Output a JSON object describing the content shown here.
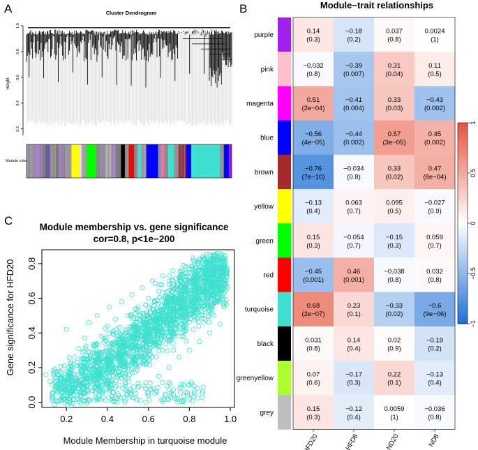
{
  "panel_labels": {
    "a": "A",
    "b": "B",
    "c": "C"
  },
  "colors": {
    "heat_neg": "#1F6FD6",
    "heat_zero": "#FFFFFF",
    "heat_pos": "#E8543E",
    "scatter": "#40E0D0"
  },
  "chart_data": [
    {
      "type": "dendrogram",
      "title": "Cluster Dendrogram",
      "ylabel": "Height",
      "ylim": [
        0.15,
        1.0
      ],
      "yticks": [
        "0.2",
        "0.4",
        "0.6",
        "0.8",
        "1.0"
      ],
      "ytick_values": [
        0.2,
        0.4,
        0.6,
        0.8,
        1.0
      ],
      "module_bar_label": "Module colors",
      "module_bar_colors": [
        "#9e9e9e",
        "#8a8f98",
        "#a97ac0",
        "#7f7f7f",
        "#6a5aa8",
        "#9b9b9b",
        "#808080",
        "#b07cc6",
        "#999999",
        "#ffff00",
        "#dcdcdc",
        "#a0a0a0",
        "#00ff00",
        "#909090",
        "#8c8c8c",
        "#b3b3b3",
        "#a287c1",
        "#7c7c7c",
        "#000000",
        "#9a9a9a",
        "#ff0000",
        "#8f8f8f",
        "#40e0d0",
        "#a4a4a4",
        "#0000ff",
        "#909090",
        "#ff69b4",
        "#8a8a8a",
        "#40e0d0",
        "#9a9a9a",
        "#a52a2a",
        "#0000ff",
        "#40e0d0",
        "#40e0d0",
        "#969696",
        "#0000ff",
        "#a020f0"
      ]
    },
    {
      "type": "heatmap",
      "title": "Module−trait relationships",
      "rows": [
        "purple",
        "pink",
        "magenta",
        "blue",
        "brown",
        "yellow",
        "green",
        "red",
        "turquoise",
        "black",
        "greenyellow",
        "grey"
      ],
      "row_colors": [
        "#A020F0",
        "#FFC0CB",
        "#FF00FF",
        "#0000FF",
        "#A52A2A",
        "#FFFF00",
        "#00FF00",
        "#FF0000",
        "#40E0D0",
        "#000000",
        "#ADFF2F",
        "#BEBEBE"
      ],
      "columns": [
        "HFD20",
        "HFD8",
        "ND20",
        "ND8"
      ],
      "values": [
        [
          0.14,
          -0.18,
          0.037,
          0.0024
        ],
        [
          -0.032,
          -0.39,
          0.31,
          0.11
        ],
        [
          0.51,
          -0.41,
          0.33,
          -0.43
        ],
        [
          -0.56,
          -0.44,
          0.57,
          0.45
        ],
        [
          -0.76,
          -0.034,
          0.33,
          0.47
        ],
        [
          -0.13,
          0.063,
          0.095,
          -0.027
        ],
        [
          0.15,
          -0.054,
          -0.15,
          0.059
        ],
        [
          -0.45,
          0.46,
          -0.038,
          0.032
        ],
        [
          0.68,
          0.23,
          -0.33,
          -0.6
        ],
        [
          0.031,
          0.14,
          0.02,
          -0.19
        ],
        [
          0.07,
          -0.17,
          0.22,
          -0.13
        ],
        [
          0.15,
          -0.12,
          0.0059,
          -0.036
        ]
      ],
      "value_labels": [
        [
          "0.14",
          "−0.18",
          "0.037",
          "0.0024"
        ],
        [
          "−0.032",
          "−0.39",
          "0.31",
          "0.11"
        ],
        [
          "0.51",
          "−0.41",
          "0.33",
          "−0.43"
        ],
        [
          "−0.56",
          "−0.44",
          "0.57",
          "0.45"
        ],
        [
          "−0.76",
          "−0.034",
          "0.33",
          "0.47"
        ],
        [
          "−0.13",
          "0.063",
          "0.095",
          "−0.027"
        ],
        [
          "0.15",
          "−0.054",
          "−0.15",
          "0.059"
        ],
        [
          "−0.45",
          "0.46",
          "−0.038",
          "0.032"
        ],
        [
          "0.68",
          "0.23",
          "−0.33",
          "−0.6"
        ],
        [
          "0.031",
          "0.14",
          "0.02",
          "−0.19"
        ],
        [
          "0.07",
          "−0.17",
          "0.22",
          "−0.13"
        ],
        [
          "0.15",
          "−0.12",
          "0.0059",
          "−0.036"
        ]
      ],
      "pvalues": [
        [
          "(0.3)",
          "(0.2)",
          "(0.8)",
          "(1)"
        ],
        [
          "(0.8)",
          "(0.007)",
          "(0.04)",
          "(0.5)"
        ],
        [
          "(2e−04)",
          "(0.004)",
          "(0.03)",
          "(0.002)"
        ],
        [
          "(4e−05)",
          "(0.002)",
          "(3e−05)",
          "(0.002)"
        ],
        [
          "(7e−10)",
          "(0.8)",
          "(0.02)",
          "(8e−04)"
        ],
        [
          "(0.4)",
          "(0.7)",
          "(0.5)",
          "(0.9)"
        ],
        [
          "(0.3)",
          "(0.7)",
          "(0.3)",
          "(0.7)"
        ],
        [
          "(0.001)",
          "(0.001)",
          "(0.8)",
          "(0.8)"
        ],
        [
          "(2e−07)",
          "(0.1)",
          "(0.02)",
          "(9e−06)"
        ],
        [
          "(0.8)",
          "(0.4)",
          "(0.9)",
          "(0.2)"
        ],
        [
          "(0.6)",
          "(0.3)",
          "(0.1)",
          "(0.4)"
        ],
        [
          "(0.3)",
          "(0.4)",
          "(1)",
          "(0.8)"
        ]
      ],
      "color_range": [
        -1,
        1
      ],
      "colorbar_ticks": [
        "1",
        "0.5",
        "0",
        "−0.5",
        "−1"
      ],
      "colorbar_tick_values": [
        1,
        0.5,
        0,
        -0.5,
        -1
      ]
    },
    {
      "type": "scatter",
      "title": "Module membership vs. gene significance",
      "subtitle": "cor=0.8, p<1e−200",
      "xlabel": "Module Membership in turquoise module",
      "ylabel": "Gene significance for  HFD20",
      "xlim": [
        0.08,
        1.02
      ],
      "ylim": [
        -0.03,
        0.88
      ],
      "xticks": [
        "0.2",
        "0.4",
        "0.6",
        "0.8",
        "1.0"
      ],
      "xtick_values": [
        0.2,
        0.4,
        0.6,
        0.8,
        1.0
      ],
      "yticks": [
        "0.0",
        "0.2",
        "0.4",
        "0.6",
        "0.8"
      ],
      "ytick_values": [
        0.0,
        0.2,
        0.4,
        0.6,
        0.8
      ],
      "points": [
        [
          0.1,
          0.16
        ],
        [
          0.12,
          0.12
        ],
        [
          0.13,
          0.05
        ],
        [
          0.15,
          0.09
        ],
        [
          0.17,
          0.14
        ],
        [
          0.18,
          0.03
        ],
        [
          0.19,
          0.21
        ],
        [
          0.2,
          0.11
        ],
        [
          0.2,
          0.42
        ],
        [
          0.21,
          0.02
        ],
        [
          0.22,
          0.17
        ],
        [
          0.23,
          0.08
        ],
        [
          0.24,
          0.26
        ],
        [
          0.25,
          0.13
        ],
        [
          0.26,
          0.31
        ],
        [
          0.27,
          0.05
        ],
        [
          0.28,
          0.2
        ],
        [
          0.29,
          0.37
        ],
        [
          0.3,
          0.1
        ],
        [
          0.3,
          0.27
        ],
        [
          0.31,
          0.46
        ],
        [
          0.32,
          0.15
        ],
        [
          0.33,
          0.33
        ],
        [
          0.34,
          0.06
        ],
        [
          0.35,
          0.24
        ],
        [
          0.35,
          0.5
        ],
        [
          0.36,
          0.18
        ],
        [
          0.37,
          0.38
        ],
        [
          0.38,
          0.03
        ],
        [
          0.38,
          0.29
        ],
        [
          0.39,
          0.12
        ],
        [
          0.4,
          0.44
        ],
        [
          0.4,
          0.22
        ],
        [
          0.41,
          0.55
        ],
        [
          0.42,
          0.08
        ],
        [
          0.42,
          0.34
        ],
        [
          0.43,
          0.19
        ],
        [
          0.44,
          0.48
        ],
        [
          0.45,
          0.27
        ],
        [
          0.45,
          0.02
        ],
        [
          0.46,
          0.4
        ],
        [
          0.47,
          0.14
        ],
        [
          0.47,
          0.58
        ],
        [
          0.48,
          0.31
        ],
        [
          0.49,
          0.22
        ],
        [
          0.5,
          0.5
        ],
        [
          0.5,
          0.06
        ],
        [
          0.51,
          0.37
        ],
        [
          0.52,
          0.62
        ],
        [
          0.52,
          0.17
        ],
        [
          0.53,
          0.44
        ],
        [
          0.54,
          0.28
        ],
        [
          0.55,
          0.55
        ],
        [
          0.55,
          0.11
        ],
        [
          0.56,
          0.39
        ],
        [
          0.57,
          0.66
        ],
        [
          0.57,
          0.23
        ],
        [
          0.58,
          0.48
        ],
        [
          0.59,
          0.33
        ],
        [
          0.6,
          0.6
        ],
        [
          0.6,
          0.04
        ],
        [
          0.61,
          0.42
        ],
        [
          0.62,
          0.7
        ],
        [
          0.62,
          0.26
        ],
        [
          0.63,
          0.52
        ],
        [
          0.64,
          0.36
        ],
        [
          0.65,
          0.64
        ],
        [
          0.65,
          0.15
        ],
        [
          0.66,
          0.46
        ],
        [
          0.67,
          0.73
        ],
        [
          0.67,
          0.3
        ],
        [
          0.68,
          0.56
        ],
        [
          0.69,
          0.4
        ],
        [
          0.7,
          0.68
        ],
        [
          0.7,
          0.2
        ],
        [
          0.71,
          0.5
        ],
        [
          0.72,
          0.76
        ],
        [
          0.72,
          0.34
        ],
        [
          0.73,
          0.6
        ],
        [
          0.74,
          0.44
        ],
        [
          0.75,
          0.72
        ],
        [
          0.75,
          0.26
        ],
        [
          0.76,
          0.54
        ],
        [
          0.77,
          0.79
        ],
        [
          0.77,
          0.38
        ],
        [
          0.78,
          0.64
        ],
        [
          0.79,
          0.48
        ],
        [
          0.8,
          0.75
        ],
        [
          0.8,
          0.3
        ],
        [
          0.81,
          0.58
        ],
        [
          0.82,
          0.82
        ],
        [
          0.82,
          0.42
        ],
        [
          0.83,
          0.68
        ],
        [
          0.84,
          0.52
        ],
        [
          0.85,
          0.78
        ],
        [
          0.85,
          0.35
        ],
        [
          0.86,
          0.62
        ],
        [
          0.87,
          0.84
        ],
        [
          0.87,
          0.46
        ],
        [
          0.88,
          0.72
        ],
        [
          0.89,
          0.57
        ],
        [
          0.9,
          0.8
        ],
        [
          0.9,
          0.4
        ],
        [
          0.91,
          0.66
        ],
        [
          0.92,
          0.85
        ],
        [
          0.92,
          0.5
        ],
        [
          0.93,
          0.75
        ],
        [
          0.94,
          0.6
        ],
        [
          0.95,
          0.82
        ],
        [
          0.95,
          0.45
        ],
        [
          0.96,
          0.7
        ],
        [
          0.97,
          0.78
        ],
        [
          0.97,
          0.55
        ],
        [
          0.98,
          0.65
        ]
      ],
      "cloud_centers": [
        [
          0.18,
          0.08
        ],
        [
          0.25,
          0.12
        ],
        [
          0.32,
          0.17
        ],
        [
          0.38,
          0.21
        ],
        [
          0.44,
          0.26
        ],
        [
          0.5,
          0.31
        ],
        [
          0.56,
          0.37
        ],
        [
          0.62,
          0.43
        ],
        [
          0.68,
          0.49
        ],
        [
          0.74,
          0.55
        ],
        [
          0.8,
          0.61
        ],
        [
          0.86,
          0.67
        ],
        [
          0.92,
          0.72
        ],
        [
          0.96,
          0.75
        ]
      ]
    }
  ]
}
